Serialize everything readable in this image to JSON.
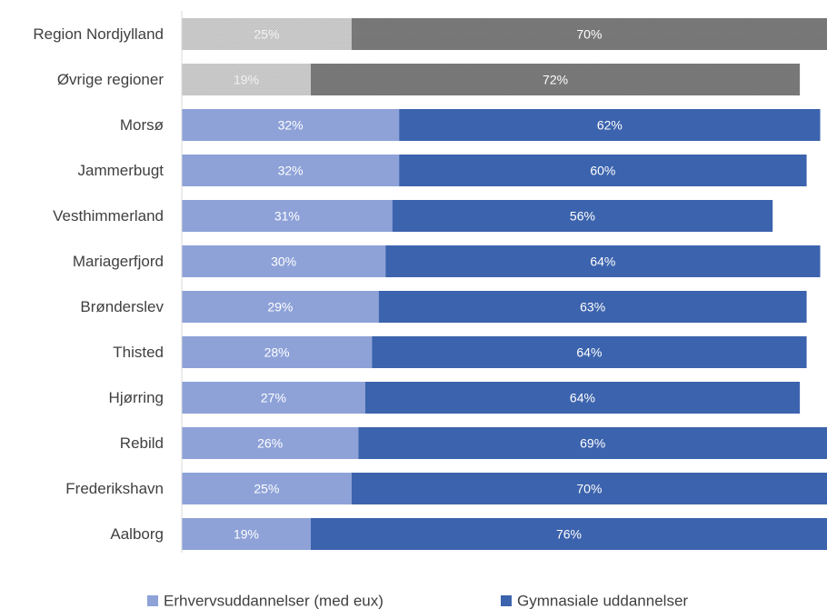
{
  "chart_data": {
    "type": "bar",
    "orientation": "horizontal",
    "stacked": true,
    "categories": [
      "Region Nordjylland",
      "Øvrige regioner",
      "Morsø",
      "Jammerbugt",
      "Vesthimmerland",
      "Mariagerfjord",
      "Brønderslev",
      "Thisted",
      "Hjørring",
      "Rebild",
      "Frederikshavn",
      "Aalborg"
    ],
    "series": [
      {
        "name": "Erhvervsuddannelser (med eux)",
        "values": [
          25,
          19,
          32,
          32,
          31,
          30,
          29,
          28,
          27,
          26,
          25,
          19
        ],
        "labels": [
          "25%",
          "19%",
          "32%",
          "32%",
          "31%",
          "30%",
          "29%",
          "28%",
          "27%",
          "26%",
          "25%",
          "19%"
        ],
        "color": "#8ea2d8"
      },
      {
        "name": "Gymnasiale uddannelser",
        "values": [
          70,
          72,
          62,
          60,
          56,
          64,
          63,
          64,
          64,
          69,
          70,
          76
        ],
        "labels": [
          "70%",
          "72%",
          "62%",
          "60%",
          "56%",
          "64%",
          "63%",
          "64%",
          "64%",
          "69%",
          "70%",
          "76%"
        ],
        "color": "#3c63ad"
      }
    ],
    "highlight_colors": {
      "Erhvervsuddannelser (med eux)": "#c8c8c8",
      "Gymnasiale uddannelser": "#7a7a7a"
    },
    "highlight_categories": [
      "Region Nordjylland",
      "Øvrige regioner"
    ],
    "xlim": [
      0,
      95
    ],
    "legend_position": "bottom",
    "grid": false
  }
}
